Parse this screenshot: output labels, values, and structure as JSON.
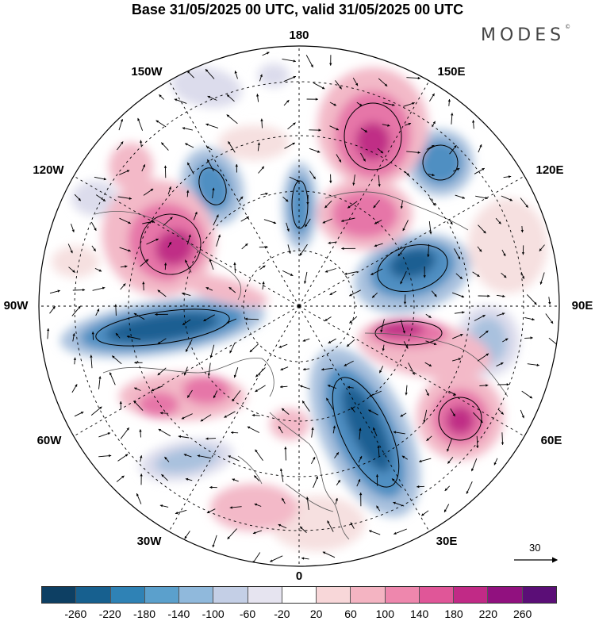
{
  "title": "Base 31/05/2025 00 UTC, valid 31/05/2025 00 UTC",
  "brand": {
    "text": "MODES",
    "mark": "©"
  },
  "longitude_labels": [
    "180",
    "150E",
    "120E",
    "90E",
    "60E",
    "30E",
    "0",
    "30W",
    "60W",
    "90W",
    "120W",
    "150W"
  ],
  "reference_vector": {
    "label": "30"
  },
  "colorbar": {
    "colors": [
      "#0d3f63",
      "#17608f",
      "#2f82b5",
      "#5ba0cc",
      "#90b9dc",
      "#c4cfe6",
      "#e6e4f0",
      "#ffffff",
      "#f8d7d9",
      "#f4b4c2",
      "#ee87ad",
      "#e05698",
      "#c12a86",
      "#91117f",
      "#5b0e77"
    ],
    "ticks": [
      "-260",
      "-220",
      "-180",
      "-140",
      "-100",
      "-60",
      "-20",
      "20",
      "60",
      "100",
      "140",
      "180",
      "220",
      "260"
    ]
  },
  "map_data": {
    "projection": "north-polar-stereographic",
    "field_colors": {
      "neg_strong": "#1c5f92",
      "neg_mid": "#4f8fc2",
      "neg_weak": "#a9c1de",
      "neg_faint": "#dcdcec",
      "pos_faint": "#f6e0e0",
      "pos_weak": "#f3b9c8",
      "pos_mid": "#e676a8",
      "pos_strong": "#c02d86"
    }
  }
}
